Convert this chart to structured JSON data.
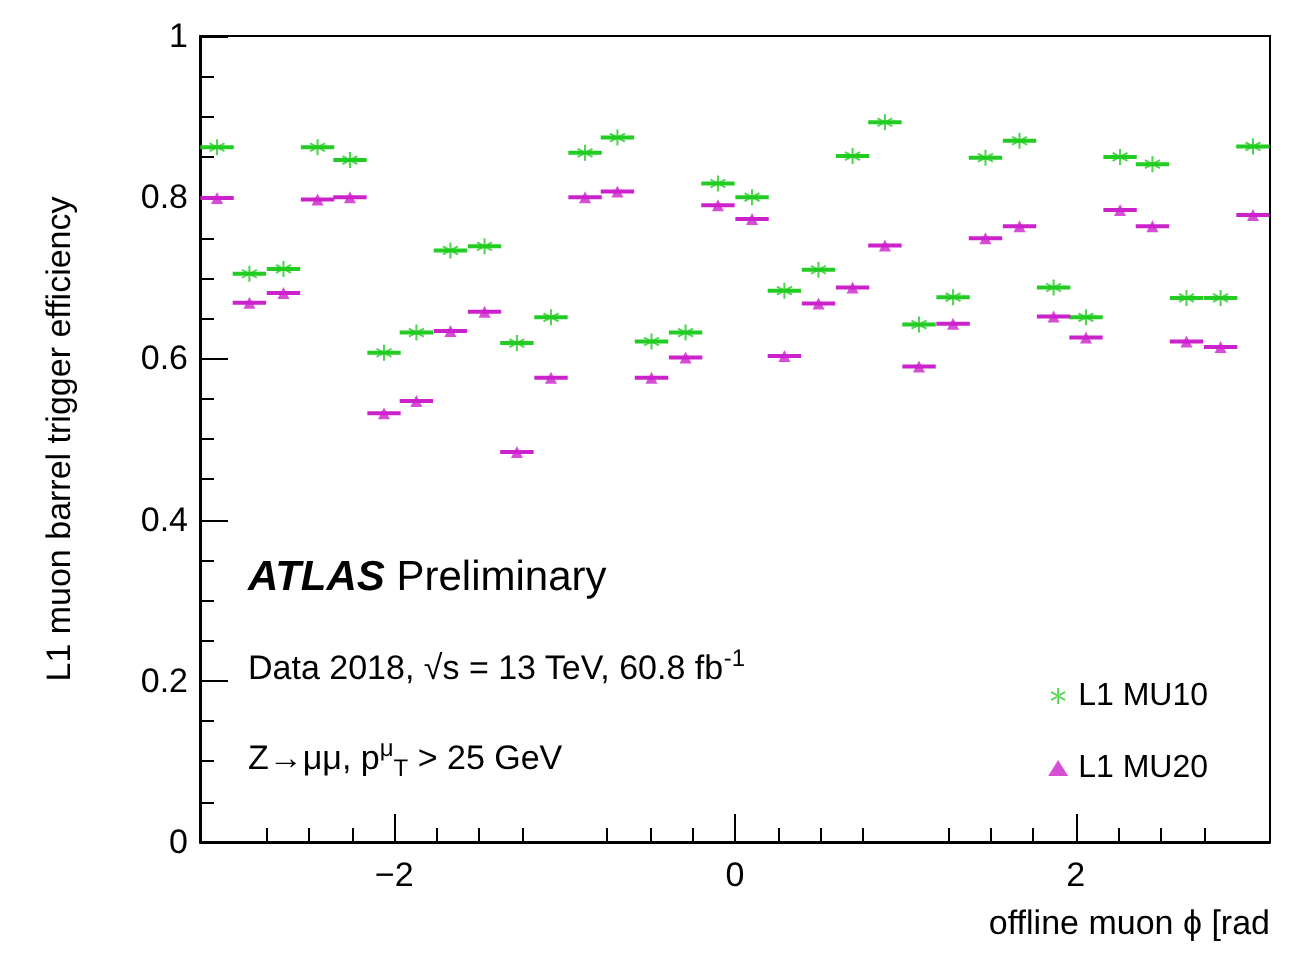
{
  "chart_data": {
    "type": "scatter",
    "xlabel": "offline muon ϕ [rad",
    "ylabel": "L1 muon barrel trigger efficiency",
    "annotations": [
      "ATLAS Preliminary",
      "Data 2018, √s = 13 TeV, 60.8 fb$^{-1}$",
      "Z→μμ, p$^{μ}$$_{T}$ > 25 GeV"
    ],
    "x": [
      -3.04,
      -2.85,
      -2.65,
      -2.45,
      -2.26,
      -2.06,
      -1.87,
      -1.67,
      -1.47,
      -1.28,
      -1.08,
      -0.88,
      -0.69,
      -0.49,
      -0.29,
      -0.1,
      0.1,
      0.29,
      0.49,
      0.69,
      0.88,
      1.08,
      1.28,
      1.47,
      1.67,
      1.87,
      2.06,
      2.26,
      2.45,
      2.65,
      2.85,
      3.04
    ],
    "series": [
      {
        "name": "L1 MU10",
        "color": "#22cc22",
        "marker": "cross",
        "xerrors": [
          0.098,
          0.098,
          0.098,
          0.098,
          0.098,
          0.098,
          0.098,
          0.098,
          0.098,
          0.098,
          0.098,
          0.098,
          0.098,
          0.098,
          0.098,
          0.098,
          0.098,
          0.098,
          0.098,
          0.098,
          0.098,
          0.098,
          0.098,
          0.098,
          0.098,
          0.098,
          0.098,
          0.098,
          0.098,
          0.098,
          0.098,
          0.098
        ],
        "values": [
          0.862,
          0.705,
          0.711,
          0.862,
          0.846,
          0.607,
          0.632,
          0.734,
          0.739,
          0.619,
          0.651,
          0.855,
          0.874,
          0.621,
          0.632,
          0.817,
          0.8,
          0.684,
          0.71,
          0.851,
          0.893,
          0.642,
          0.676,
          0.849,
          0.87,
          0.688,
          0.651,
          0.85,
          0.841,
          0.675,
          0.675,
          0.863
        ]
      },
      {
        "name": "L1 MU20",
        "color": "#cc22cc",
        "marker": "triangle",
        "xerrors": [
          0.098,
          0.098,
          0.098,
          0.098,
          0.098,
          0.098,
          0.098,
          0.098,
          0.098,
          0.098,
          0.098,
          0.098,
          0.098,
          0.098,
          0.098,
          0.098,
          0.098,
          0.098,
          0.098,
          0.098,
          0.098,
          0.098,
          0.098,
          0.098,
          0.098,
          0.098,
          0.098,
          0.098,
          0.098,
          0.098,
          0.098,
          0.098
        ],
        "values": [
          0.799,
          0.669,
          0.681,
          0.797,
          0.8,
          0.532,
          0.547,
          0.634,
          0.658,
          0.484,
          0.576,
          0.8,
          0.807,
          0.576,
          0.601,
          0.79,
          0.773,
          0.603,
          0.668,
          0.688,
          0.74,
          0.59,
          0.643,
          0.749,
          0.764,
          0.652,
          0.626,
          0.784,
          0.764,
          0.621,
          0.614,
          0.778
        ]
      }
    ],
    "xlim": [
      -3.14,
      3.14
    ],
    "ylim": [
      0,
      1
    ],
    "xticks": [
      -2,
      0,
      2
    ],
    "yticks": [
      0,
      0.2,
      0.4,
      0.6,
      0.8,
      1
    ],
    "legend": "bottom right",
    "grid": false
  }
}
